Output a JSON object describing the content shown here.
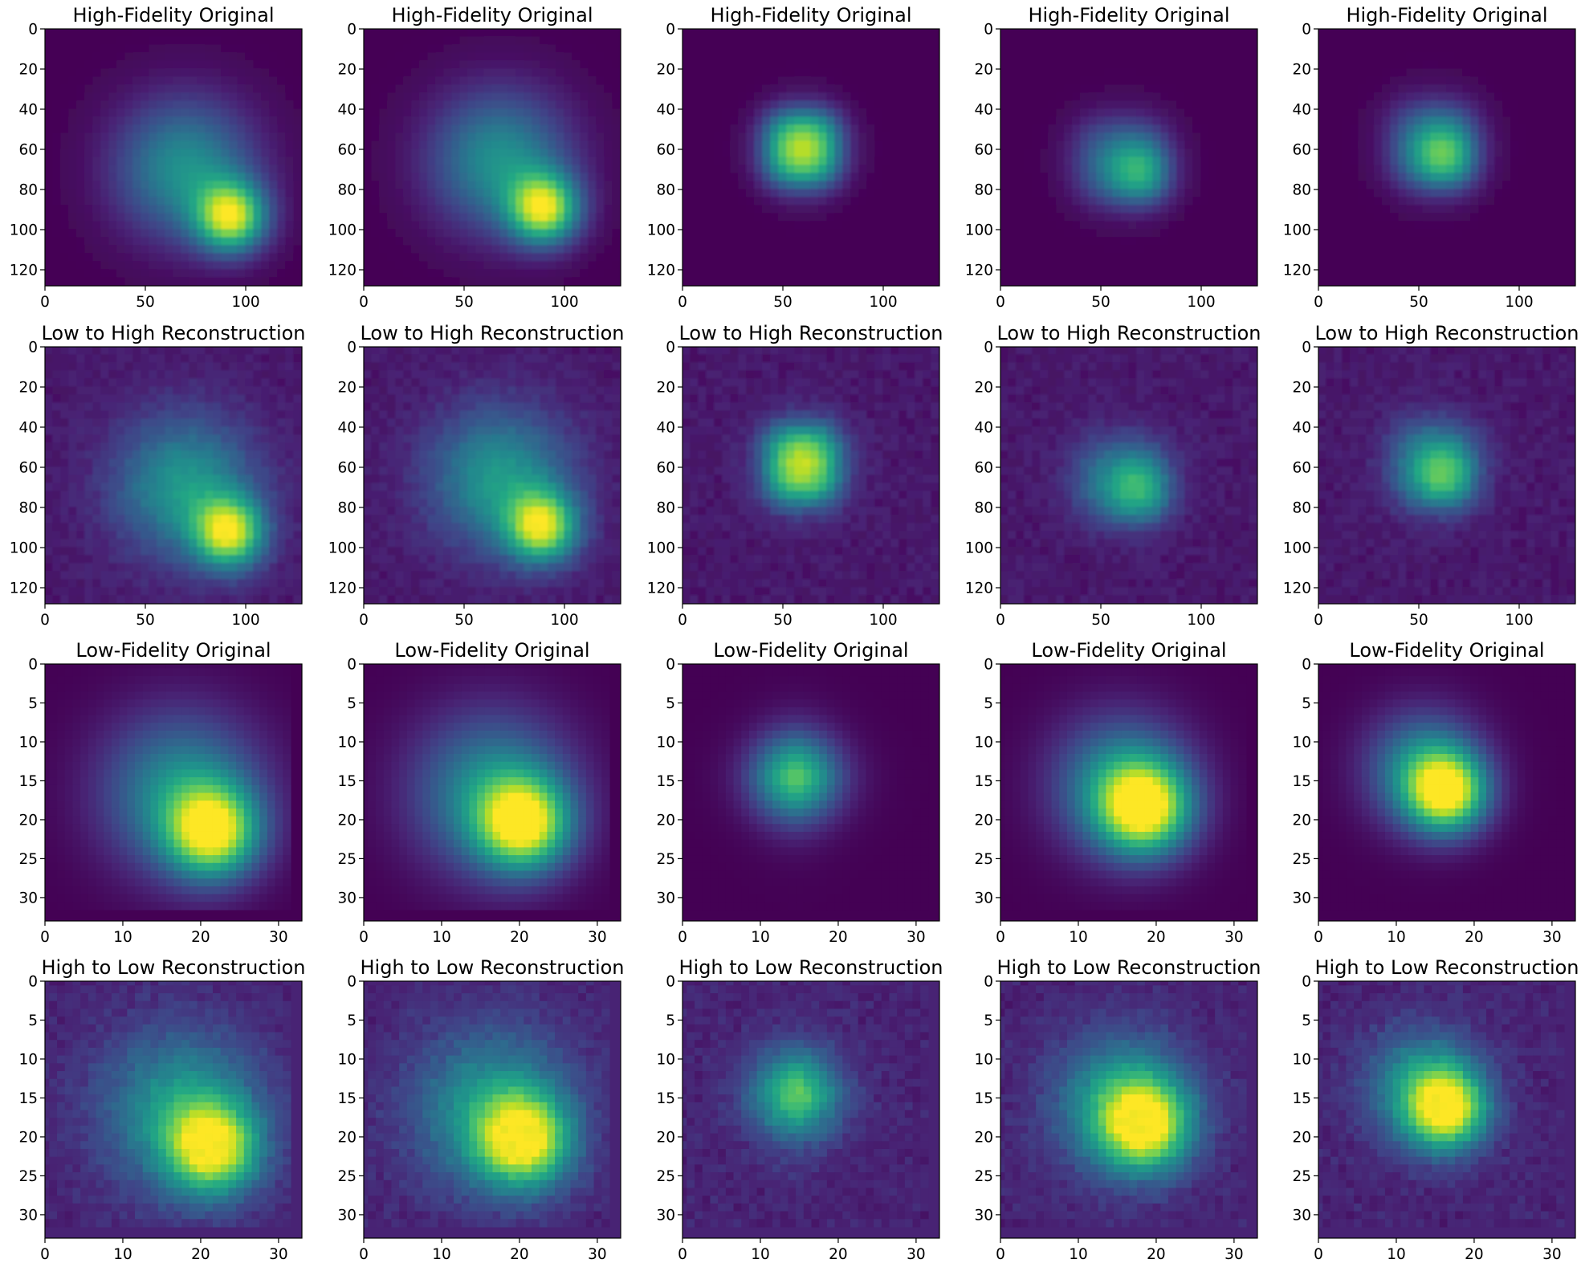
{
  "chart_data": {
    "type": "heatmap",
    "colormap": "viridis",
    "grid": false,
    "rows": [
      {
        "title": "High-Fidelity Original",
        "image_size": [
          128,
          128
        ],
        "extent": [
          0,
          128
        ],
        "xticks": [
          0,
          50,
          100
        ],
        "yticks": [
          0,
          20,
          40,
          60,
          80,
          100,
          120
        ],
        "background": 0.0,
        "noise": 0.0,
        "hotspot": 0,
        "panels": [
          {
            "type": "blob",
            "cx": 93,
            "cy": 94,
            "tailx": 70,
            "taily": 70,
            "sx": 12,
            "sy": 12,
            "tail_scale": 24
          },
          {
            "type": "blob",
            "cx": 90,
            "cy": 90,
            "tailx": 68,
            "taily": 66,
            "sx": 12,
            "sy": 12,
            "tail_scale": 24
          },
          {
            "type": "rect",
            "cx": 60,
            "cy": 60,
            "hx": 16,
            "hy": 16,
            "soft": 5
          },
          {
            "type": "rect-grad",
            "cx": 60,
            "cy": 66,
            "hx": 20,
            "hy": 18,
            "soft": 6,
            "hotx": 78,
            "hoty": 78
          },
          {
            "type": "rect-grad",
            "cx": 57,
            "cy": 58,
            "hx": 19,
            "hy": 19,
            "soft": 6,
            "hotx": 68,
            "hoty": 68
          }
        ]
      },
      {
        "title": "Low to High Reconstruction",
        "image_size": [
          128,
          128
        ],
        "extent": [
          0,
          128
        ],
        "xticks": [
          0,
          50,
          100
        ],
        "yticks": [
          0,
          20,
          40,
          60,
          80,
          100,
          120
        ],
        "background": 0.07,
        "noise": 0.03,
        "hotspot": 0,
        "panels": [
          {
            "type": "blob",
            "cx": 92,
            "cy": 93,
            "tailx": 70,
            "taily": 70,
            "sx": 12,
            "sy": 12,
            "tail_scale": 24
          },
          {
            "type": "blob",
            "cx": 89,
            "cy": 90,
            "tailx": 68,
            "taily": 66,
            "sx": 12,
            "sy": 12,
            "tail_scale": 24
          },
          {
            "type": "rect",
            "cx": 60,
            "cy": 59,
            "hx": 16,
            "hy": 17,
            "soft": 5
          },
          {
            "type": "rect-grad",
            "cx": 60,
            "cy": 66,
            "hx": 20,
            "hy": 18,
            "soft": 6,
            "hotx": 78,
            "hoty": 78
          },
          {
            "type": "rect-grad",
            "cx": 57,
            "cy": 58,
            "hx": 19,
            "hy": 19,
            "soft": 6,
            "hotx": 68,
            "hoty": 70
          }
        ]
      },
      {
        "title": "Low-Fidelity Original",
        "image_size": [
          32,
          32
        ],
        "extent": [
          0,
          33
        ],
        "xticks": [
          0,
          10,
          20,
          30
        ],
        "yticks": [
          0,
          5,
          10,
          15,
          20,
          25,
          30
        ],
        "background": 0.0,
        "noise": 0.0,
        "hotspot": 0,
        "panels": [
          {
            "type": "blob",
            "cx": 22,
            "cy": 22,
            "tailx": 18,
            "taily": 17,
            "sx": 4,
            "sy": 4,
            "tail_scale": 7
          },
          {
            "type": "blob",
            "cx": 21,
            "cy": 21,
            "tailx": 17,
            "taily": 17,
            "sx": 4,
            "sy": 4,
            "tail_scale": 7
          },
          {
            "type": "rect",
            "cx": 15,
            "cy": 15,
            "hx": 4,
            "hy": 4,
            "soft": 2
          },
          {
            "type": "blob",
            "cx": 19,
            "cy": 19,
            "tailx": 16,
            "taily": 16,
            "sx": 4,
            "sy": 4,
            "tail_scale": 6
          },
          {
            "type": "blob",
            "cx": 17,
            "cy": 17,
            "tailx": 14,
            "taily": 14,
            "sx": 3.5,
            "sy": 3.5,
            "tail_scale": 5
          }
        ]
      },
      {
        "title": "High to Low Reconstruction",
        "image_size": [
          32,
          32
        ],
        "extent": [
          0,
          33
        ],
        "xticks": [
          0,
          10,
          20,
          30
        ],
        "yticks": [
          0,
          5,
          10,
          15,
          20,
          25,
          30
        ],
        "background": 0.1,
        "noise": 0.035,
        "hotspot": 1,
        "panels": [
          {
            "type": "blob",
            "cx": 22,
            "cy": 22,
            "tailx": 18,
            "taily": 17,
            "sx": 4,
            "sy": 4,
            "tail_scale": 7
          },
          {
            "type": "blob",
            "cx": 21,
            "cy": 21,
            "tailx": 17,
            "taily": 17,
            "sx": 4,
            "sy": 4,
            "tail_scale": 7
          },
          {
            "type": "rect",
            "cx": 15,
            "cy": 15,
            "hx": 4,
            "hy": 4,
            "soft": 2
          },
          {
            "type": "blob",
            "cx": 19,
            "cy": 19,
            "tailx": 16,
            "taily": 16,
            "sx": 4,
            "sy": 4,
            "tail_scale": 6
          },
          {
            "type": "blob",
            "cx": 17,
            "cy": 17,
            "tailx": 14,
            "taily": 14,
            "sx": 3.5,
            "sy": 3.5,
            "tail_scale": 5
          }
        ]
      }
    ]
  }
}
